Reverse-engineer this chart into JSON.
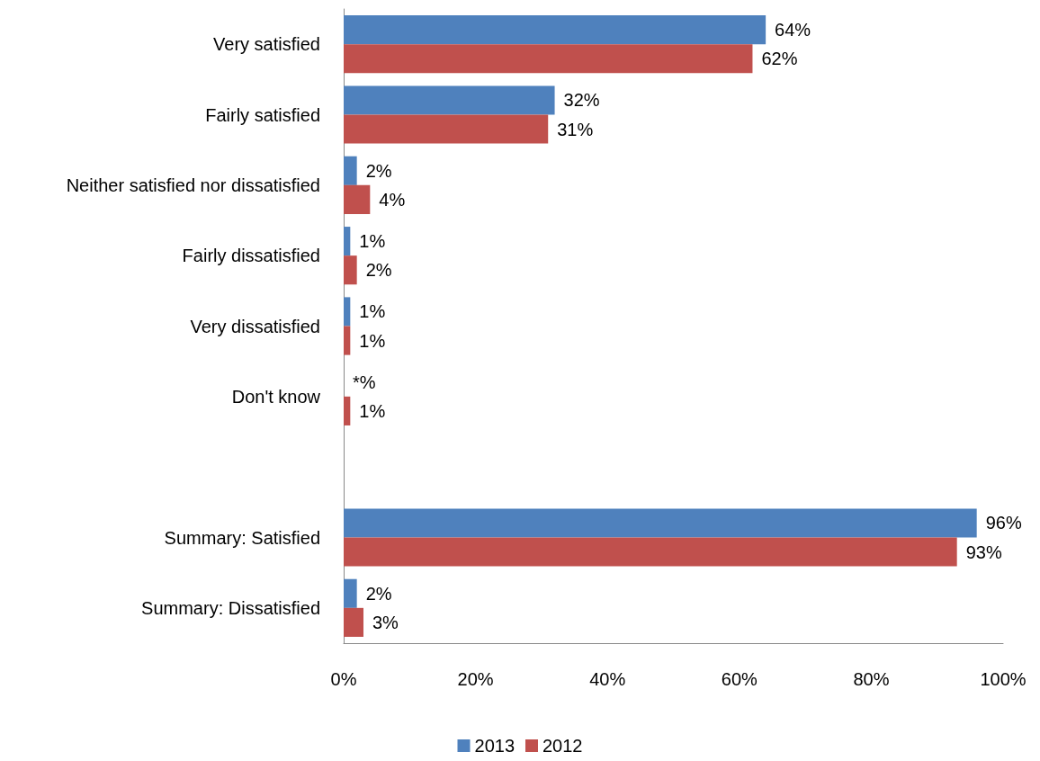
{
  "chart_data": {
    "type": "bar",
    "orientation": "horizontal",
    "categories": [
      "Very satisfied",
      "Fairly satisfied",
      "Neither satisfied nor dissatisfied",
      "Fairly dissatisfied",
      "Very dissatisfied",
      "Don't know",
      null,
      "Summary: Satisfied",
      "Summary: Dissatisfied"
    ],
    "series": [
      {
        "name": "2013",
        "color": "#4f81bd",
        "values": [
          64,
          32,
          2,
          1,
          1,
          0,
          null,
          96,
          2
        ],
        "value_labels": [
          "64%",
          "32%",
          "2%",
          "1%",
          "1%",
          "*%",
          null,
          "96%",
          "2%"
        ]
      },
      {
        "name": "2012",
        "color": "#c0504d",
        "values": [
          62,
          31,
          4,
          2,
          1,
          1,
          null,
          93,
          3
        ],
        "value_labels": [
          "62%",
          "31%",
          "4%",
          "2%",
          "1%",
          "1%",
          null,
          "93%",
          "3%"
        ]
      }
    ],
    "xlim": [
      0,
      100
    ],
    "xticks": [
      {
        "value": 0,
        "label": "0%"
      },
      {
        "value": 20,
        "label": "20%"
      },
      {
        "value": 40,
        "label": "40%"
      },
      {
        "value": 60,
        "label": "60%"
      },
      {
        "value": 80,
        "label": "80%"
      },
      {
        "value": 100,
        "label": "100%"
      }
    ],
    "grid": false,
    "legend": "bottom"
  }
}
